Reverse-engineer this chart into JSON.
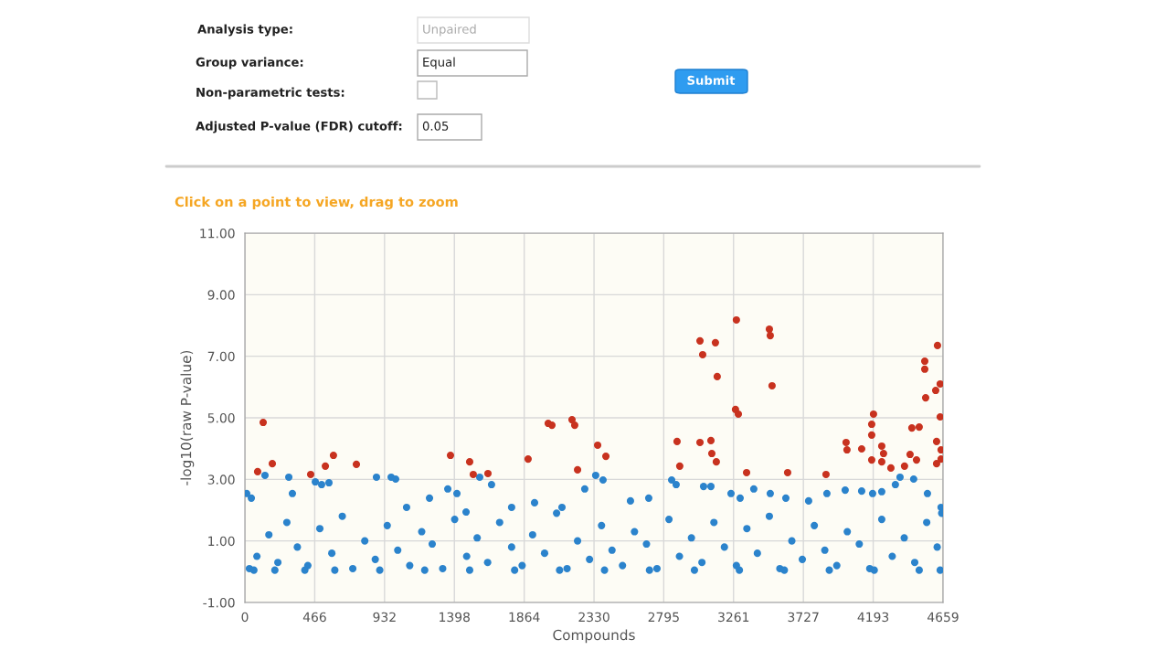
{
  "chart_data": {
    "type": "scatter",
    "title": "Click on a point to view, drag to zoom",
    "xlabel": "Compounds",
    "ylabel": "-log10(raw P-value)",
    "annotations": [
      "Analysis type:",
      "Unpaired",
      "Group variance:",
      "Equal",
      "Non-parametric tests:",
      "Adjusted P-value (FDR) cutoff:",
      "0.05",
      "Submit"
    ],
    "xlim": [
      0,
      4659
    ],
    "xticks": [
      0,
      466,
      932,
      1398,
      1864,
      2330,
      2795,
      3261,
      3727,
      4193,
      4659
    ],
    "ylim": [
      -1,
      11
    ],
    "yticks": [
      {
        "value": -1,
        "label": "-1.00"
      },
      {
        "value": 1,
        "label": "1.00"
      },
      {
        "value": 3,
        "label": "3.00"
      },
      {
        "value": 5,
        "label": "5.00"
      },
      {
        "value": 7,
        "label": "7.00"
      },
      {
        "value": 9,
        "label": "9.00"
      },
      {
        "value": 11,
        "label": "11.00"
      }
    ],
    "grid": true,
    "marker": "circle",
    "series": [
      {
        "color": "#2b83cc",
        "x": [
          12,
          43,
          134,
          293,
          317,
          470,
          512,
          561,
          878,
          976,
          1006,
          1079,
          1232,
          1354,
          1415,
          1476,
          1567,
          1646,
          1780,
          1933,
          2116,
          2268,
          2341,
          2390,
          2573,
          2695,
          2848,
          2878,
          3061,
          3110,
          3244,
          3305,
          3396,
          3506,
          3610,
          3762,
          3884,
          4006,
          4116,
          4189,
          4250,
          4341,
          4372,
          4463,
          4555,
          4646,
          30,
          80,
          160,
          220,
          280,
          350,
          420,
          500,
          580,
          650,
          720,
          800,
          870,
          950,
          1020,
          1100,
          1180,
          1250,
          1320,
          1400,
          1480,
          1550,
          1620,
          1700,
          1780,
          1850,
          1920,
          2000,
          2080,
          2150,
          2220,
          2300,
          2380,
          2450,
          2520,
          2600,
          2680,
          2750,
          2830,
          2900,
          2980,
          3050,
          3130,
          3200,
          3280,
          3350,
          3420,
          3500,
          3570,
          3650,
          3720,
          3800,
          3870,
          3950,
          4020,
          4100,
          4170,
          4250,
          4320,
          4400,
          4470,
          4550,
          4620,
          4650,
          60,
          200,
          400,
          600,
          900,
          1200,
          1500,
          1800,
          2100,
          2400,
          2700,
          3000,
          3300,
          3600,
          3900,
          4200,
          4500,
          4640
        ],
        "values": [
          2.54,
          2.39,
          3.13,
          3.07,
          2.54,
          2.92,
          2.83,
          2.89,
          3.07,
          3.07,
          3.01,
          2.09,
          2.39,
          2.69,
          2.54,
          1.94,
          3.07,
          2.83,
          2.09,
          2.24,
          2.09,
          2.69,
          3.13,
          2.98,
          2.3,
          2.39,
          2.98,
          2.83,
          2.77,
          2.77,
          2.54,
          2.39,
          2.69,
          2.54,
          2.39,
          2.3,
          2.54,
          2.65,
          2.62,
          2.54,
          2.6,
          2.83,
          3.07,
          3.01,
          2.54,
          2.09,
          0.1,
          0.5,
          1.2,
          0.3,
          1.6,
          0.8,
          0.2,
          1.4,
          0.6,
          1.8,
          0.1,
          1.0,
          0.4,
          1.5,
          0.7,
          0.2,
          1.3,
          0.9,
          0.1,
          1.7,
          0.5,
          1.1,
          0.3,
          1.6,
          0.8,
          0.2,
          1.2,
          0.6,
          1.9,
          0.1,
          1.0,
          0.4,
          1.5,
          0.7,
          0.2,
          1.3,
          0.9,
          0.1,
          1.7,
          0.5,
          1.1,
          0.3,
          1.6,
          0.8,
          0.2,
          1.4,
          0.6,
          1.8,
          0.1,
          1.0,
          0.4,
          1.5,
          0.7,
          0.2,
          1.3,
          0.9,
          0.1,
          1.7,
          0.5,
          1.1,
          0.3,
          1.6,
          0.8,
          1.9,
          0.05,
          0.05,
          0.05,
          0.05,
          0.05,
          0.05,
          0.05,
          0.05,
          0.05,
          0.05,
          0.05,
          0.05,
          0.05,
          0.05,
          0.05,
          0.05,
          0.05,
          0.05
        ]
      },
      {
        "color": "#c8321f",
        "x": [
          85,
          122,
          183,
          439,
          537,
          591,
          744,
          1372,
          1500,
          1524,
          1622,
          1890,
          2024,
          2049,
          2183,
          2201,
          2220,
          2354,
          2409,
          2884,
          2902,
          3037,
          3055,
          3140,
          3152,
          3037,
          3110,
          3116,
          3146,
          3280,
          3274,
          3293,
          3348,
          3500,
          3506,
          3518,
          3622,
          3878,
          4012,
          4018,
          4116,
          4195,
          4183,
          4183,
          4183,
          4250,
          4262,
          4250,
          4311,
          4402,
          4439,
          4451,
          4500,
          4482,
          4537,
          4537,
          4543,
          4622,
          4610,
          4640,
          4640,
          4616,
          4646,
          4646,
          4616
        ],
        "values": [
          3.25,
          4.85,
          3.51,
          3.16,
          3.43,
          3.78,
          3.49,
          3.78,
          3.57,
          3.16,
          3.19,
          3.66,
          4.82,
          4.76,
          4.94,
          4.76,
          3.31,
          4.11,
          3.75,
          4.23,
          3.43,
          7.5,
          7.05,
          7.44,
          6.34,
          4.2,
          4.26,
          3.84,
          3.57,
          8.18,
          5.27,
          5.12,
          3.22,
          7.88,
          7.67,
          6.04,
          3.22,
          3.16,
          4.2,
          3.96,
          3.99,
          5.12,
          4.79,
          4.44,
          3.63,
          4.08,
          3.84,
          3.57,
          3.37,
          3.43,
          3.81,
          4.67,
          4.7,
          3.63,
          6.84,
          6.58,
          5.65,
          7.35,
          5.89,
          6.1,
          5.03,
          4.23,
          3.96,
          3.66,
          3.51
        ]
      }
    ]
  }
}
